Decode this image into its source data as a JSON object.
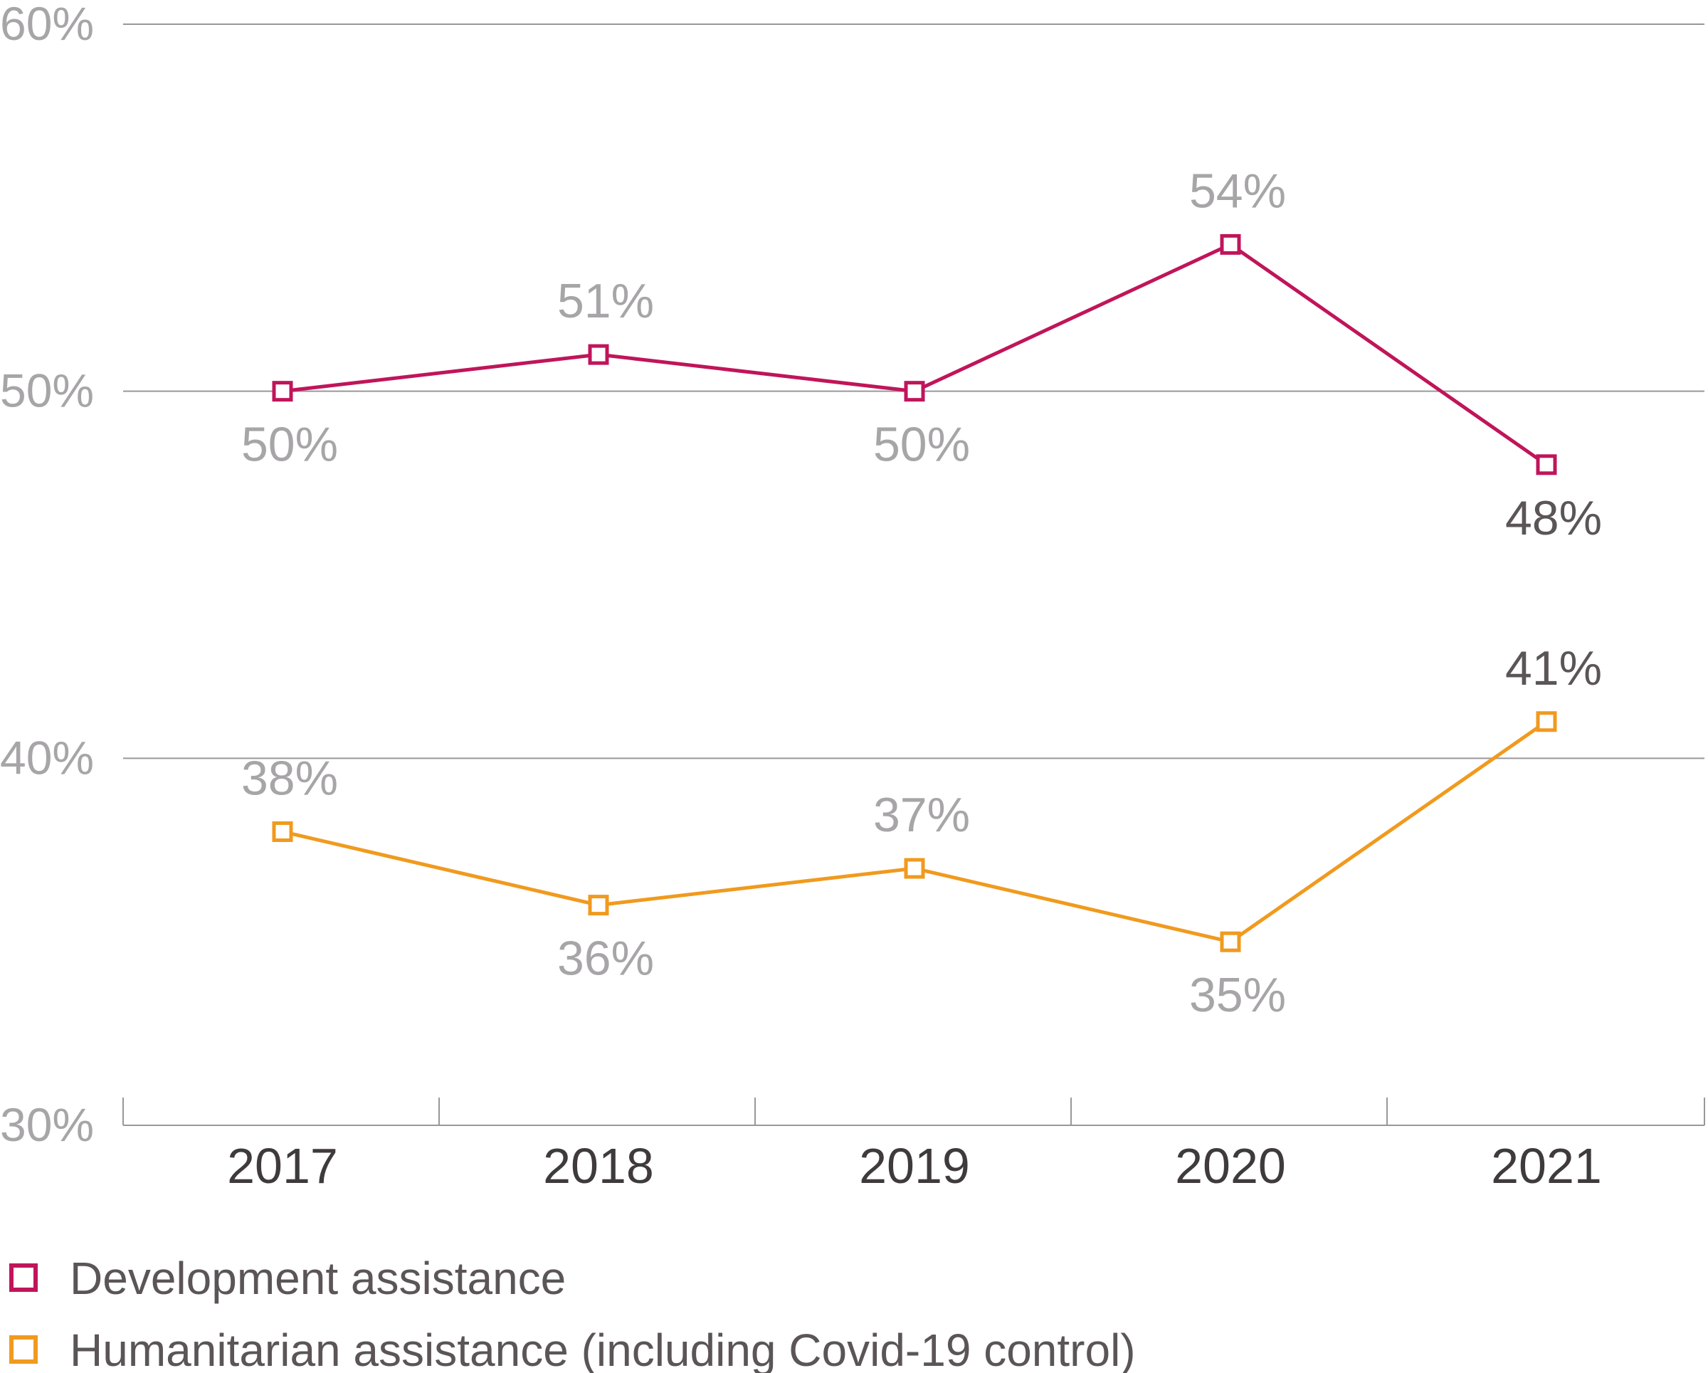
{
  "chart_data": {
    "type": "line",
    "x": [
      "2017",
      "2018",
      "2019",
      "2020",
      "2021"
    ],
    "ylim": [
      30,
      60
    ],
    "yticks": [
      30,
      40,
      50,
      60
    ],
    "ytick_labels": [
      "30%",
      "40%",
      "50%",
      "60%"
    ],
    "grid": true,
    "legend_position": "bottom-left",
    "series": [
      {
        "name": "Development assistance",
        "color": "#c0155a",
        "values": [
          50,
          51,
          50,
          54,
          48
        ],
        "labels": [
          "50%",
          "51%",
          "50%",
          "54%",
          "48%"
        ],
        "label_positions": [
          "below",
          "above",
          "below",
          "above",
          "below"
        ]
      },
      {
        "name": "Humanitarian assistance (including Covid-19 control)",
        "color": "#f09a1e",
        "values": [
          38,
          36,
          37,
          35,
          41
        ],
        "labels": [
          "38%",
          "36%",
          "37%",
          "35%",
          "41%"
        ],
        "label_positions": [
          "above",
          "below",
          "above",
          "below",
          "above"
        ]
      }
    ],
    "label_colors": {
      "default": "#a7a5a7",
      "latest": "#5b5557"
    }
  }
}
